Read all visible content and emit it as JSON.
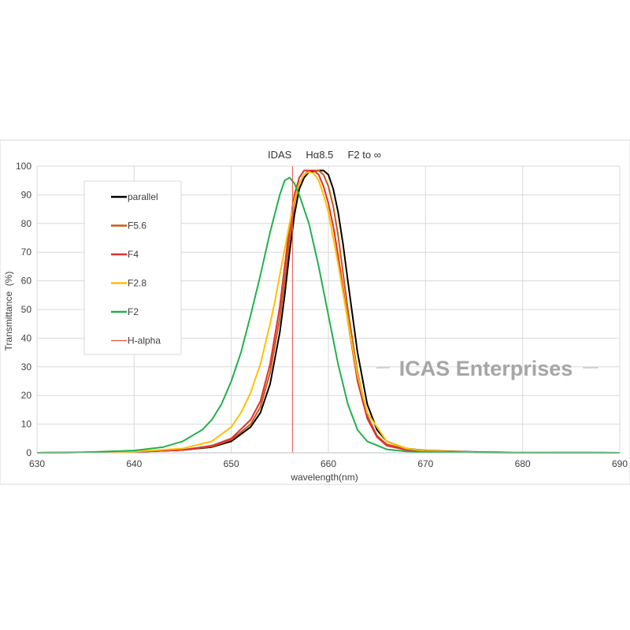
{
  "chart_data": {
    "type": "line",
    "title": "IDAS     Hα8.5     F2 to ∞",
    "xlabel": "wavelength(nm)",
    "ylabel": "Transmittance  (%)",
    "xlim": [
      630,
      690
    ],
    "ylim": [
      0,
      100
    ],
    "xticks": [
      630,
      640,
      650,
      660,
      670,
      680,
      690
    ],
    "yticks": [
      0,
      10,
      20,
      30,
      40,
      50,
      60,
      70,
      80,
      90,
      100
    ],
    "grid": true,
    "legend_position": "top-left",
    "watermark": "ICAS Enterprises",
    "series": [
      {
        "name": "parallel",
        "color": "#000000",
        "x": [
          630,
          640,
          645,
          648,
          650,
          652,
          653,
          654,
          655,
          655.5,
          656,
          656.5,
          657,
          657.5,
          658,
          659,
          659.5,
          660,
          660.5,
          661,
          661.5,
          662,
          663,
          664,
          665,
          666,
          668,
          670,
          675,
          680,
          690
        ],
        "y": [
          0,
          0.3,
          1,
          2,
          4,
          9,
          14,
          24,
          42,
          55,
          70,
          83,
          92,
          96,
          98,
          98.5,
          98.5,
          97,
          92,
          84,
          73,
          60,
          35,
          17,
          8,
          4,
          1.5,
          0.8,
          0.3,
          0.1,
          0
        ]
      },
      {
        "name": "F5.6",
        "color": "#c55a11",
        "x": [
          630,
          640,
          645,
          648,
          650,
          652,
          653,
          654,
          655,
          655.5,
          656,
          656.5,
          657,
          657.5,
          658,
          659,
          659.5,
          660,
          660.5,
          661,
          661.5,
          662,
          663,
          664,
          665,
          666,
          668,
          670,
          675,
          680,
          690
        ],
        "y": [
          0,
          0.3,
          1,
          2.2,
          4.5,
          10,
          16,
          28,
          47,
          60,
          75,
          87,
          94,
          97,
          98.5,
          98.5,
          97,
          93,
          86,
          76,
          63,
          50,
          28,
          13,
          6,
          3,
          1.2,
          0.6,
          0.2,
          0.1,
          0
        ]
      },
      {
        "name": "F4",
        "color": "#e03030",
        "x": [
          630,
          640,
          645,
          648,
          650,
          652,
          653,
          654,
          655,
          655.5,
          656,
          656.5,
          657,
          657.5,
          658,
          658.5,
          659,
          659.5,
          660,
          660.5,
          661,
          662,
          663,
          664,
          665,
          666,
          668,
          670,
          675,
          680,
          690
        ],
        "y": [
          0,
          0.3,
          1,
          2.5,
          5,
          11.5,
          18,
          31,
          51,
          65,
          79,
          90,
          96,
          98.5,
          98.5,
          98.5,
          97,
          93,
          87,
          79,
          69,
          46,
          25,
          12,
          5.5,
          2.5,
          1,
          0.5,
          0.2,
          0.1,
          0
        ]
      },
      {
        "name": "F2.8",
        "color": "#ffc000",
        "x": [
          630,
          640,
          645,
          648,
          650,
          651,
          652,
          653,
          654,
          654.5,
          655,
          655.5,
          656,
          656.5,
          657,
          657.5,
          658,
          658.5,
          659,
          659.5,
          660,
          661,
          662,
          663,
          664,
          666,
          668,
          670,
          675,
          680,
          690
        ],
        "y": [
          0,
          0.4,
          1.5,
          4,
          9,
          14,
          21,
          31,
          45,
          53,
          62,
          71,
          80,
          88,
          94,
          97,
          98,
          97.5,
          95,
          90,
          84,
          66,
          46,
          27,
          14,
          4,
          1.5,
          0.7,
          0.2,
          0.1,
          0
        ]
      },
      {
        "name": "F2",
        "color": "#22b14c",
        "x": [
          630,
          635,
          640,
          643,
          645,
          647,
          648,
          649,
          650,
          651,
          652,
          653,
          654,
          655,
          655.5,
          656,
          656.5,
          657,
          658,
          659,
          660,
          661,
          662,
          663,
          664,
          666,
          668,
          670,
          675,
          680,
          690
        ],
        "y": [
          0,
          0.2,
          0.8,
          2,
          4,
          8,
          11.5,
          17,
          25,
          35,
          48,
          62,
          77,
          90,
          95,
          96,
          94,
          90,
          80,
          65,
          48,
          31,
          17,
          8,
          4,
          1.2,
          0.5,
          0.3,
          0.1,
          0,
          0
        ]
      },
      {
        "name": "H-alpha",
        "color": "#e8524a",
        "x": [
          656.3,
          656.3
        ],
        "y": [
          0,
          100
        ]
      }
    ]
  }
}
